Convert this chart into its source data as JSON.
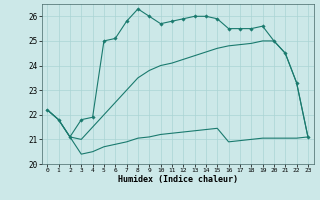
{
  "xlabel": "Humidex (Indice chaleur)",
  "x_values": [
    0,
    1,
    2,
    3,
    4,
    5,
    6,
    7,
    8,
    9,
    10,
    11,
    12,
    13,
    14,
    15,
    16,
    17,
    18,
    19,
    20,
    21,
    22,
    23
  ],
  "line1_y": [
    22.2,
    21.8,
    21.1,
    21.8,
    21.9,
    25.0,
    25.1,
    25.8,
    26.3,
    26.0,
    25.7,
    25.8,
    25.9,
    26.0,
    26.0,
    25.9,
    25.5,
    25.5,
    25.5,
    25.6,
    25.0,
    24.5,
    23.3,
    21.1
  ],
  "line2_y": [
    22.2,
    21.8,
    21.1,
    20.4,
    20.5,
    20.7,
    20.8,
    20.9,
    21.05,
    21.1,
    21.2,
    21.25,
    21.3,
    21.35,
    21.4,
    21.45,
    20.9,
    20.95,
    21.0,
    21.05,
    21.05,
    21.05,
    21.05,
    21.1
  ],
  "line3_y": [
    22.2,
    21.8,
    21.1,
    21.0,
    21.5,
    22.0,
    22.5,
    23.0,
    23.5,
    23.8,
    24.0,
    24.1,
    24.25,
    24.4,
    24.55,
    24.7,
    24.8,
    24.85,
    24.9,
    25.0,
    25.0,
    24.5,
    23.3,
    21.1
  ],
  "ylim": [
    20,
    26.5
  ],
  "yticks": [
    20,
    21,
    22,
    23,
    24,
    25,
    26
  ],
  "color": "#1a7a6e",
  "bg_color": "#cce8e8",
  "grid_color": "#aad4d4",
  "markersize": 1.8
}
